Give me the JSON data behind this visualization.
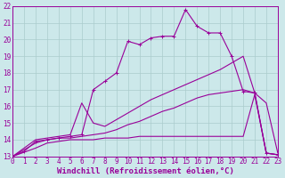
{
  "bg_color": "#cce8ea",
  "grid_color": "#aacccc",
  "line_color": "#990099",
  "xlim": [
    0,
    23
  ],
  "ylim": [
    13,
    22
  ],
  "xlabel": "Windchill (Refroidissement éolien,°C)",
  "xlabel_fontsize": 6.5,
  "xtick_fontsize": 5.5,
  "ytick_fontsize": 5.5,
  "series1_x": [
    0,
    1,
    2,
    3,
    4,
    5,
    6,
    7,
    8,
    9,
    10,
    11,
    12,
    13,
    14,
    15,
    16,
    17,
    18,
    19,
    20,
    21,
    22,
    23
  ],
  "series1_y": [
    13.0,
    13.3,
    13.9,
    14.0,
    14.1,
    14.2,
    14.3,
    17.0,
    17.5,
    18.0,
    19.9,
    19.7,
    20.1,
    20.2,
    20.2,
    21.8,
    20.8,
    20.4,
    20.4,
    19.0,
    16.9,
    16.8,
    13.2,
    13.1
  ],
  "series2_x": [
    0,
    2,
    3,
    4,
    5,
    6,
    7,
    8,
    9,
    10,
    11,
    12,
    13,
    14,
    15,
    16,
    17,
    18,
    19,
    20,
    21,
    22,
    23
  ],
  "series2_y": [
    13.0,
    14.0,
    14.1,
    14.2,
    14.3,
    16.2,
    15.0,
    14.8,
    15.2,
    15.6,
    16.0,
    16.4,
    16.7,
    17.0,
    17.3,
    17.6,
    17.9,
    18.2,
    18.6,
    19.0,
    16.8,
    13.2,
    13.1
  ],
  "series3_x": [
    0,
    2,
    3,
    4,
    5,
    6,
    7,
    8,
    9,
    10,
    11,
    12,
    13,
    14,
    15,
    16,
    17,
    18,
    19,
    20,
    21,
    22,
    23
  ],
  "series3_y": [
    13.0,
    13.8,
    14.0,
    14.1,
    14.1,
    14.2,
    14.3,
    14.4,
    14.6,
    14.9,
    15.1,
    15.4,
    15.7,
    15.9,
    16.2,
    16.5,
    16.7,
    16.8,
    16.9,
    17.0,
    16.8,
    16.2,
    13.2
  ],
  "series4_x": [
    0,
    2,
    3,
    4,
    5,
    6,
    7,
    8,
    9,
    10,
    11,
    12,
    13,
    14,
    15,
    16,
    17,
    18,
    19,
    20,
    21,
    22,
    23
  ],
  "series4_y": [
    13.0,
    13.5,
    13.8,
    13.9,
    14.0,
    14.0,
    14.0,
    14.1,
    14.1,
    14.1,
    14.2,
    14.2,
    14.2,
    14.2,
    14.2,
    14.2,
    14.2,
    14.2,
    14.2,
    14.2,
    16.7,
    13.2,
    13.1
  ]
}
